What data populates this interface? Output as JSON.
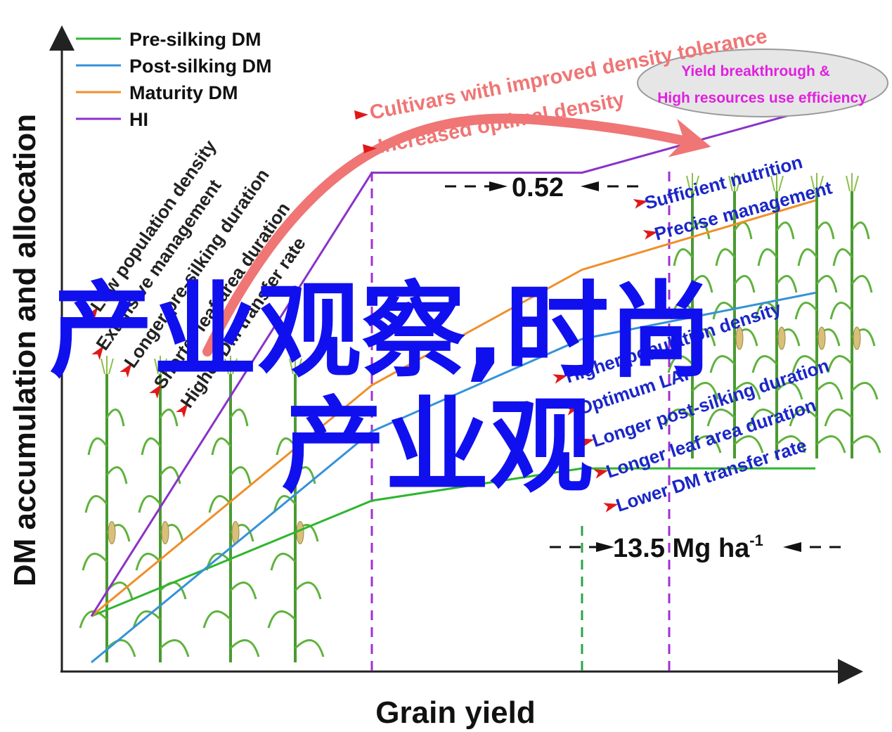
{
  "chart_data": {
    "type": "line",
    "xlabel": "Grain yield",
    "ylabel": "DM accumulation and allocation",
    "x": [
      0,
      1,
      2,
      3
    ],
    "series": [
      {
        "name": "Pre-silking DM",
        "color": "#2fb52f",
        "values": [
          0.1,
          0.35,
          0.42,
          0.42
        ]
      },
      {
        "name": "Post-silking DM",
        "color": "#3592d8",
        "values": [
          0.0,
          0.5,
          0.7,
          0.8
        ]
      },
      {
        "name": "Maturity DM",
        "color": "#ef8f2a",
        "values": [
          0.1,
          0.6,
          0.85,
          1.0
        ]
      },
      {
        "name": "HI",
        "color": "#8a32c8",
        "values": [
          0.1,
          1.06,
          1.06,
          1.2
        ]
      }
    ],
    "legend_position": "top-left",
    "grid": false,
    "annotations": {
      "gap_hi": "0.52",
      "gap_yield": "13.5 Mg ha",
      "gap_yield_sup": "-1",
      "cultivar": "Cultivars with improved density tolerance",
      "optimal_density": "Increased optimal density",
      "ellipse_line1": "Yield breakthrough &",
      "ellipse_line2": "High resources use efficiency",
      "left_labels": [
        "Low population density",
        "Extensive management",
        "Longer pre-silking duration",
        "Shorter leaf area duration",
        "Higher DM transfer rate"
      ],
      "right_upper_labels": [
        "Sufficient nutrition",
        "Precise management"
      ],
      "right_lower_labels": [
        "Higher population density",
        "Optimum LAI",
        "Longer post-silking duration",
        "Longer leaf area duration",
        "Lower DM transfer rate"
      ]
    }
  },
  "watermark": {
    "line1": "产业观察,时尚",
    "line2": "产业观"
  }
}
